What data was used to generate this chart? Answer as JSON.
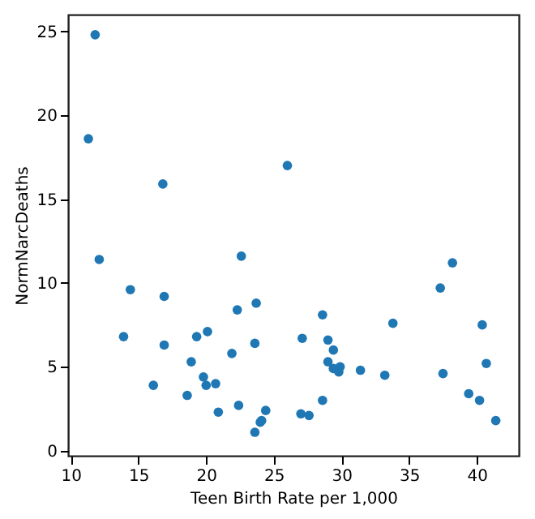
{
  "chart_data": {
    "type": "scatter",
    "xlabel": "Teen Birth Rate per 1,000",
    "ylabel": "NormNarcDeaths",
    "x": [
      11.3,
      11.8,
      12.1,
      13.9,
      14.4,
      16.1,
      16.8,
      16.9,
      16.9,
      18.6,
      18.9,
      19.3,
      19.8,
      20.0,
      20.1,
      20.7,
      20.9,
      21.9,
      22.3,
      22.4,
      22.6,
      23.6,
      23.6,
      23.7,
      24.0,
      24.1,
      24.4,
      26.0,
      27.0,
      27.1,
      27.6,
      28.6,
      28.6,
      29.0,
      29.0,
      29.4,
      29.4,
      29.8,
      29.9,
      31.4,
      33.2,
      33.8,
      37.3,
      37.5,
      38.2,
      39.4,
      40.2,
      40.4,
      40.7,
      41.4
    ],
    "series": [
      {
        "color": "#1f77b4",
        "values": [
          18.6,
          24.8,
          11.4,
          6.8,
          9.6,
          3.9,
          15.9,
          9.2,
          6.3,
          3.3,
          5.3,
          6.8,
          4.4,
          3.9,
          7.1,
          4.0,
          2.3,
          5.8,
          8.4,
          2.7,
          11.6,
          1.1,
          6.4,
          8.8,
          1.7,
          1.8,
          2.4,
          17.0,
          2.2,
          6.7,
          2.1,
          8.1,
          3.0,
          6.6,
          5.3,
          6.0,
          4.9,
          4.7,
          5.0,
          4.8,
          4.5,
          7.6,
          9.7,
          4.6,
          11.2,
          3.4,
          3.0,
          7.5,
          5.2,
          1.8
        ]
      }
    ],
    "xlim": [
      9.8,
      43.1
    ],
    "ylim": [
      -0.3,
      26.0
    ],
    "xticks": [
      10,
      15,
      20,
      25,
      30,
      35,
      40
    ],
    "yticks": [
      0,
      5,
      10,
      15,
      20,
      25
    ],
    "grid": false,
    "marker": "circle"
  }
}
